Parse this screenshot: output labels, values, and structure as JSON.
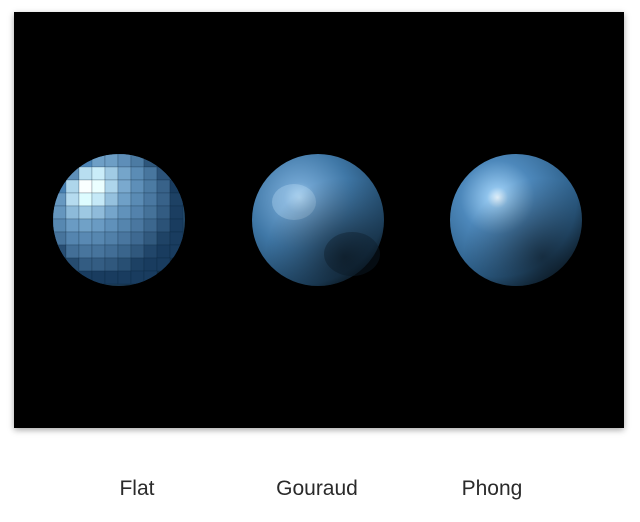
{
  "figure": {
    "background": "#000000",
    "sphere_color": "#3f77a6",
    "items": [
      {
        "label": "Flat",
        "icon": "flat-shaded-sphere"
      },
      {
        "label": "Gouraud",
        "icon": "gouraud-shaded-sphere"
      },
      {
        "label": "Phong",
        "icon": "phong-shaded-sphere"
      }
    ]
  }
}
